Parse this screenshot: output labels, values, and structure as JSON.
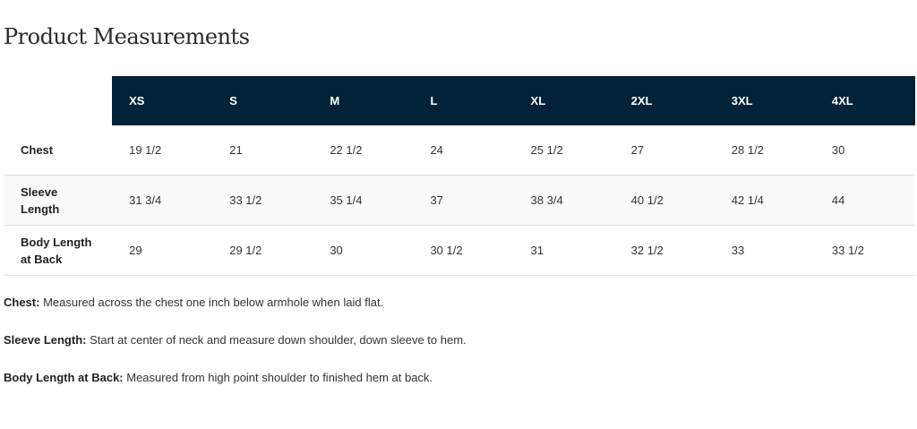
{
  "title": "Product Measurements",
  "table": {
    "sizes": [
      "XS",
      "S",
      "M",
      "L",
      "XL",
      "2XL",
      "3XL",
      "4XL"
    ],
    "rows": [
      {
        "label": "Chest",
        "values": [
          "19 1/2",
          "21",
          "22 1/2",
          "24",
          "25 1/2",
          "27",
          "28 1/2",
          "30"
        ]
      },
      {
        "label": "Sleeve Length",
        "values": [
          "31 3/4",
          "33 1/2",
          "35 1/4",
          "37",
          "38 3/4",
          "40 1/2",
          "42 1/4",
          "44"
        ]
      },
      {
        "label": "Body Length at Back",
        "values": [
          "29",
          "29 1/2",
          "30",
          "30 1/2",
          "31",
          "32 1/2",
          "33",
          "33 1/2"
        ]
      }
    ]
  },
  "notes": [
    {
      "term": "Chest:",
      "text": " Measured across the chest one inch below armhole when laid flat."
    },
    {
      "term": "Sleeve Length:",
      "text": " Start at center of neck and measure down shoulder, down sleeve to hem."
    },
    {
      "term": "Body Length at Back:",
      "text": " Measured from high point shoulder to finished hem at back."
    }
  ],
  "colors": {
    "header_bg": "#012237",
    "header_text": "#ffffff"
  }
}
